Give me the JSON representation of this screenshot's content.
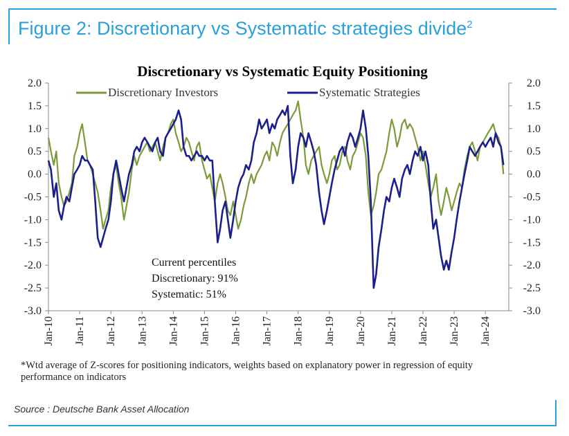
{
  "figure_title": "Figure 2: Discretionary vs Systematic strategies divide",
  "figure_superscript": "2",
  "footnote": "*Wtd average of Z-scores for positioning indicators, weights based on explanatory power in regression of equity performance on indicators",
  "source": "Source : Deutsche Bank Asset Allocation",
  "colors": {
    "accent": "#2aa0d8",
    "discretionary": "#7b9a3a",
    "systematic": "#1a1f8c"
  },
  "chart_data": {
    "type": "line",
    "title": "Discretionary  vs Systematic Equity Positioning",
    "xlabel": "",
    "ylabel": "",
    "ylim": [
      -3.0,
      2.0
    ],
    "yticks": [
      "2.0",
      "1.5",
      "1.0",
      "0.5",
      "0.0",
      "-0.5",
      "-1.0",
      "-1.5",
      "-2.0",
      "-2.5",
      "-3.0"
    ],
    "xticks": [
      "Jan-10",
      "Jan-11",
      "Jan-12",
      "Jan-13",
      "Jan-14",
      "Jan-15",
      "Jan-16",
      "Jan-17",
      "Jan-18",
      "Jan-19",
      "Jan-20",
      "Jan-21",
      "Jan-22",
      "Jan-23",
      "Jan-24"
    ],
    "x_range": [
      2010.0,
      2024.75
    ],
    "legend": [
      "Discretionary Investors",
      "Systematic Strategies"
    ],
    "annotation": [
      "Current percentiles",
      "Discretionary: 91%",
      "Systematic: 51%"
    ],
    "series": [
      {
        "name": "Discretionary Investors",
        "x": [
          2010.0,
          2010.08,
          2010.17,
          2010.25,
          2010.33,
          2010.42,
          2010.5,
          2010.58,
          2010.67,
          2010.75,
          2010.83,
          2010.92,
          2011.0,
          2011.08,
          2011.17,
          2011.25,
          2011.33,
          2011.42,
          2011.5,
          2011.58,
          2011.67,
          2011.75,
          2011.83,
          2011.92,
          2012.0,
          2012.08,
          2012.17,
          2012.25,
          2012.33,
          2012.42,
          2012.5,
          2012.58,
          2012.67,
          2012.75,
          2012.83,
          2012.92,
          2013.0,
          2013.08,
          2013.17,
          2013.25,
          2013.33,
          2013.42,
          2013.5,
          2013.58,
          2013.67,
          2013.75,
          2013.83,
          2013.92,
          2014.0,
          2014.08,
          2014.17,
          2014.25,
          2014.33,
          2014.42,
          2014.5,
          2014.58,
          2014.67,
          2014.75,
          2014.83,
          2014.92,
          2015.0,
          2015.08,
          2015.17,
          2015.25,
          2015.33,
          2015.42,
          2015.5,
          2015.58,
          2015.67,
          2015.75,
          2015.83,
          2015.92,
          2016.0,
          2016.08,
          2016.17,
          2016.25,
          2016.33,
          2016.42,
          2016.5,
          2016.58,
          2016.67,
          2016.75,
          2016.83,
          2016.92,
          2017.0,
          2017.08,
          2017.17,
          2017.25,
          2017.33,
          2017.42,
          2017.5,
          2017.58,
          2017.67,
          2017.75,
          2017.83,
          2017.92,
          2018.0,
          2018.08,
          2018.17,
          2018.25,
          2018.33,
          2018.42,
          2018.5,
          2018.58,
          2018.67,
          2018.75,
          2018.83,
          2018.92,
          2019.0,
          2019.08,
          2019.17,
          2019.25,
          2019.33,
          2019.42,
          2019.5,
          2019.58,
          2019.67,
          2019.75,
          2019.83,
          2019.92,
          2020.0,
          2020.08,
          2020.17,
          2020.25,
          2020.33,
          2020.42,
          2020.5,
          2020.58,
          2020.67,
          2020.75,
          2020.83,
          2020.92,
          2021.0,
          2021.08,
          2021.17,
          2021.25,
          2021.33,
          2021.42,
          2021.5,
          2021.58,
          2021.67,
          2021.75,
          2021.83,
          2021.92,
          2022.0,
          2022.08,
          2022.17,
          2022.25,
          2022.33,
          2022.42,
          2022.5,
          2022.58,
          2022.67,
          2022.75,
          2022.83,
          2022.92,
          2023.0,
          2023.08,
          2023.17,
          2023.25,
          2023.33,
          2023.42,
          2023.5,
          2023.58,
          2023.67,
          2023.75,
          2023.83,
          2023.92,
          2024.0,
          2024.08,
          2024.17,
          2024.25,
          2024.33,
          2024.42,
          2024.5,
          2024.58
        ],
        "values": [
          0.8,
          0.5,
          0.2,
          0.5,
          -0.2,
          -0.5,
          -0.7,
          -0.6,
          -0.4,
          -0.2,
          0.4,
          0.6,
          0.9,
          1.1,
          0.7,
          0.3,
          0.2,
          0.0,
          -0.2,
          -0.4,
          -0.8,
          -1.2,
          -1.0,
          -0.8,
          -0.3,
          0.0,
          0.2,
          -0.2,
          -0.5,
          -1.0,
          -0.7,
          -0.4,
          0.1,
          0.4,
          0.2,
          0.4,
          0.5,
          0.6,
          0.7,
          0.5,
          0.6,
          0.7,
          0.5,
          0.3,
          0.6,
          0.8,
          0.9,
          1.1,
          1.2,
          0.9,
          0.7,
          0.5,
          0.6,
          0.8,
          0.7,
          0.5,
          0.3,
          0.6,
          0.7,
          0.3,
          0.1,
          -0.1,
          0.0,
          -0.3,
          -0.6,
          -0.2,
          0.0,
          -0.2,
          -0.5,
          -0.8,
          -0.9,
          -0.6,
          -0.9,
          -1.2,
          -1.0,
          -0.7,
          -0.5,
          -0.2,
          0.0,
          -0.2,
          0.0,
          0.1,
          0.2,
          0.4,
          0.5,
          0.3,
          0.7,
          0.6,
          0.4,
          0.7,
          0.9,
          1.0,
          1.1,
          1.2,
          1.3,
          1.4,
          1.6,
          1.2,
          0.8,
          0.2,
          0.0,
          0.3,
          0.4,
          0.5,
          0.6,
          0.2,
          0.0,
          -0.2,
          0.0,
          0.3,
          0.4,
          0.1,
          0.2,
          0.5,
          0.6,
          0.3,
          0.1,
          0.4,
          0.5,
          0.7,
          0.9,
          0.8,
          0.4,
          -0.4,
          -0.9,
          -0.7,
          -0.4,
          0.0,
          0.1,
          0.3,
          0.5,
          0.9,
          1.2,
          1.0,
          0.6,
          0.8,
          1.1,
          1.2,
          1.0,
          1.1,
          1.0,
          0.8,
          0.6,
          0.3,
          0.5,
          0.2,
          -0.2,
          -0.5,
          -0.3,
          0.0,
          -0.6,
          -0.9,
          -0.6,
          -0.3,
          -0.5,
          -0.8,
          -0.6,
          -0.4,
          -0.2,
          -0.3,
          0.1,
          0.4,
          0.6,
          0.7,
          0.5,
          0.3,
          0.6,
          0.7,
          0.8,
          0.9,
          1.0,
          1.1,
          0.9,
          0.8,
          0.6,
          0.0
        ]
      },
      {
        "name": "Systematic Strategies",
        "x": [
          2010.0,
          2010.08,
          2010.17,
          2010.25,
          2010.33,
          2010.42,
          2010.5,
          2010.58,
          2010.67,
          2010.75,
          2010.83,
          2010.92,
          2011.0,
          2011.08,
          2011.17,
          2011.25,
          2011.33,
          2011.42,
          2011.5,
          2011.58,
          2011.67,
          2011.75,
          2011.83,
          2011.92,
          2012.0,
          2012.08,
          2012.17,
          2012.25,
          2012.33,
          2012.42,
          2012.5,
          2012.58,
          2012.67,
          2012.75,
          2012.83,
          2012.92,
          2013.0,
          2013.08,
          2013.17,
          2013.25,
          2013.33,
          2013.42,
          2013.5,
          2013.58,
          2013.67,
          2013.75,
          2013.83,
          2013.92,
          2014.0,
          2014.08,
          2014.17,
          2014.25,
          2014.33,
          2014.42,
          2014.5,
          2014.58,
          2014.67,
          2014.75,
          2014.83,
          2014.92,
          2015.0,
          2015.08,
          2015.17,
          2015.25,
          2015.33,
          2015.42,
          2015.5,
          2015.58,
          2015.67,
          2015.75,
          2015.83,
          2015.92,
          2016.0,
          2016.08,
          2016.17,
          2016.25,
          2016.33,
          2016.42,
          2016.5,
          2016.58,
          2016.67,
          2016.75,
          2016.83,
          2016.92,
          2017.0,
          2017.08,
          2017.17,
          2017.25,
          2017.33,
          2017.42,
          2017.5,
          2017.58,
          2017.67,
          2017.75,
          2017.83,
          2017.92,
          2018.0,
          2018.08,
          2018.17,
          2018.25,
          2018.33,
          2018.42,
          2018.5,
          2018.58,
          2018.67,
          2018.75,
          2018.83,
          2018.92,
          2019.0,
          2019.08,
          2019.17,
          2019.25,
          2019.33,
          2019.42,
          2019.5,
          2019.58,
          2019.67,
          2019.75,
          2019.83,
          2019.92,
          2020.0,
          2020.08,
          2020.17,
          2020.25,
          2020.33,
          2020.42,
          2020.5,
          2020.58,
          2020.67,
          2020.75,
          2020.83,
          2020.92,
          2021.0,
          2021.08,
          2021.17,
          2021.25,
          2021.33,
          2021.42,
          2021.5,
          2021.58,
          2021.67,
          2021.75,
          2021.83,
          2021.92,
          2022.0,
          2022.08,
          2022.17,
          2022.25,
          2022.33,
          2022.42,
          2022.5,
          2022.58,
          2022.67,
          2022.75,
          2022.83,
          2022.92,
          2023.0,
          2023.08,
          2023.17,
          2023.25,
          2023.33,
          2023.42,
          2023.5,
          2023.58,
          2023.67,
          2023.75,
          2023.83,
          2023.92,
          2024.0,
          2024.08,
          2024.17,
          2024.25,
          2024.33,
          2024.42,
          2024.5,
          2024.58
        ],
        "values": [
          0.3,
          0.1,
          -0.5,
          -0.2,
          -0.8,
          -1.0,
          -0.7,
          -0.5,
          -0.6,
          -0.3,
          0.0,
          0.1,
          0.2,
          0.4,
          0.3,
          0.3,
          0.2,
          0.1,
          -0.6,
          -1.4,
          -1.6,
          -1.4,
          -1.2,
          -1.0,
          -0.6,
          0.0,
          0.3,
          0.0,
          -0.3,
          -0.6,
          -0.3,
          0.0,
          0.2,
          0.5,
          0.6,
          0.5,
          0.7,
          0.8,
          0.7,
          0.6,
          0.5,
          0.7,
          0.8,
          0.5,
          0.4,
          0.8,
          0.9,
          1.0,
          1.1,
          1.2,
          1.4,
          1.2,
          0.6,
          0.4,
          0.4,
          0.3,
          0.4,
          0.5,
          0.4,
          0.4,
          0.3,
          0.4,
          0.3,
          0.3,
          -0.6,
          -1.5,
          -1.2,
          -0.8,
          -0.6,
          -1.0,
          -1.4,
          -1.0,
          -0.6,
          -0.3,
          -0.1,
          0.0,
          0.2,
          0.1,
          0.3,
          0.7,
          0.9,
          1.2,
          1.0,
          1.1,
          1.2,
          0.9,
          1.1,
          1.0,
          1.2,
          1.3,
          1.4,
          1.3,
          1.5,
          0.4,
          -0.2,
          0.1,
          0.6,
          0.9,
          0.8,
          0.6,
          0.9,
          0.7,
          0.5,
          0.2,
          -0.4,
          -0.8,
          -1.1,
          -0.8,
          -0.5,
          -0.2,
          0.1,
          0.3,
          0.5,
          0.6,
          0.4,
          0.7,
          0.9,
          0.8,
          0.6,
          0.8,
          1.0,
          1.4,
          1.0,
          0.4,
          -0.6,
          -2.5,
          -2.2,
          -1.6,
          -1.2,
          -0.8,
          -0.5,
          -0.6,
          -0.3,
          -0.1,
          -0.3,
          -0.5,
          -0.1,
          0.1,
          0.2,
          0.0,
          0.3,
          0.5,
          0.4,
          0.6,
          0.3,
          0.5,
          0.2,
          -0.6,
          -1.2,
          -1.0,
          -1.4,
          -1.8,
          -2.1,
          -1.9,
          -2.1,
          -1.7,
          -1.4,
          -1.0,
          -0.6,
          -0.3,
          0.0,
          0.3,
          0.6,
          0.5,
          0.4,
          0.5,
          0.6,
          0.7,
          0.6,
          0.7,
          0.8,
          0.6,
          0.9,
          0.7,
          0.6,
          0.2
        ]
      }
    ]
  }
}
